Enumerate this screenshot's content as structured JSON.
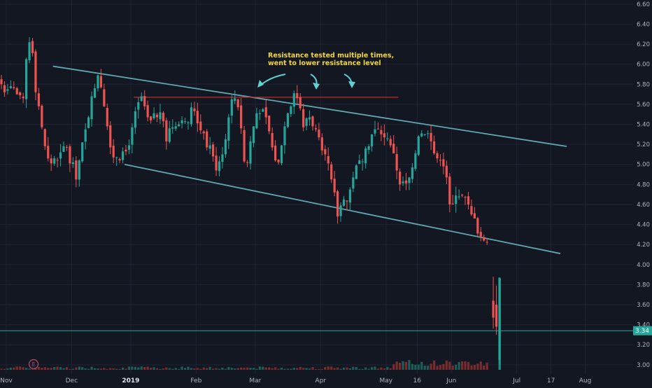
{
  "chart_data": {
    "type": "candlestick",
    "title": "",
    "xlabel": "",
    "ylabel": "",
    "ylim": [
      2.95,
      6.62
    ],
    "grid": true,
    "price_ticks": [
      3.0,
      3.2,
      3.4,
      3.6,
      3.8,
      4.0,
      4.2,
      4.4,
      4.6,
      4.8,
      5.0,
      5.2,
      5.4,
      5.6,
      5.8,
      6.0,
      6.2,
      6.4,
      6.6
    ],
    "x_ticks": [
      {
        "label": "Nov",
        "i": 2,
        "major": false
      },
      {
        "label": "Dec",
        "i": 23,
        "major": false
      },
      {
        "label": "2019",
        "i": 42,
        "major": true
      },
      {
        "label": "Feb",
        "i": 63,
        "major": false
      },
      {
        "label": "Mar",
        "i": 82,
        "major": false
      },
      {
        "label": "Apr",
        "i": 103,
        "major": false
      },
      {
        "label": "May",
        "i": 124,
        "major": false
      },
      {
        "label": "16",
        "i": 134,
        "major": false
      },
      {
        "label": "Jun",
        "i": 145,
        "major": false
      },
      {
        "label": "Jul",
        "i": 166,
        "major": false
      },
      {
        "label": "17",
        "i": 177,
        "major": false
      },
      {
        "label": "Aug",
        "i": 188,
        "major": false
      }
    ],
    "last_price": "3.34",
    "last_price_value": 3.34,
    "earnings_marker": "E",
    "annotation": {
      "text_line1": "Resistance tested multiple times,",
      "text_line2": "went to lower resistance level"
    },
    "trendlines": [
      {
        "name": "upper-channel",
        "color": "#5fa8b0",
        "points": [
          [
            17,
            5.98
          ],
          [
            182,
            5.18
          ]
        ]
      },
      {
        "name": "lower-channel",
        "color": "#5fa8b0",
        "points": [
          [
            40,
            5.0
          ],
          [
            180,
            4.11
          ]
        ]
      },
      {
        "name": "resistance",
        "color": "#c62828",
        "points": [
          [
            43,
            5.67
          ],
          [
            128,
            5.67
          ]
        ]
      }
    ],
    "ohlc_close": [
      5.8,
      5.72,
      5.75,
      5.78,
      5.76,
      5.7,
      5.69,
      5.66,
      6.05,
      6.22,
      6.11,
      5.72,
      5.58,
      5.37,
      5.18,
      5.06,
      5.01,
      5.06,
      5.04,
      5.12,
      5.18,
      5.17,
      5.01,
      5.02,
      4.85,
      5.04,
      5.22,
      5.35,
      5.47,
      5.68,
      5.76,
      5.89,
      5.77,
      5.58,
      5.38,
      5.17,
      5.07,
      5.07,
      5.04,
      5.13,
      5.13,
      5.19,
      5.37,
      5.53,
      5.62,
      5.68,
      5.58,
      5.47,
      5.44,
      5.51,
      5.47,
      5.52,
      5.43,
      5.23,
      5.36,
      5.37,
      5.38,
      5.4,
      5.44,
      5.43,
      5.42,
      5.57,
      5.53,
      5.41,
      5.34,
      5.31,
      5.17,
      5.19,
      5.08,
      4.94,
      5.03,
      5.1,
      5.25,
      5.47,
      5.65,
      5.66,
      5.57,
      5.36,
      5.03,
      5.02,
      5.23,
      5.38,
      5.51,
      5.51,
      5.55,
      5.47,
      5.33,
      5.17,
      5.04,
      5.02,
      5.19,
      5.38,
      5.51,
      5.58,
      5.71,
      5.66,
      5.56,
      5.37,
      5.46,
      5.47,
      5.38,
      5.35,
      5.27,
      5.14,
      5.1,
      5.01,
      4.85,
      4.72,
      4.48,
      4.59,
      4.65,
      4.63,
      4.75,
      4.87,
      4.99,
      5.04,
      5.03,
      5.16,
      5.18,
      5.3,
      5.35,
      5.35,
      5.3,
      5.27,
      5.26,
      5.19,
      5.11,
      4.94,
      4.8,
      4.83,
      4.81,
      4.87,
      4.97,
      5.11,
      5.28,
      5.31,
      5.3,
      5.31,
      5.23,
      5.11,
      5.06,
      5.04,
      4.98,
      4.87,
      4.6,
      4.6,
      4.69,
      4.68,
      4.69,
      4.67,
      4.6,
      4.5,
      4.46,
      4.31,
      4.28,
      4.24,
      4.22
    ],
    "volume_note": "histogram bars along bottom"
  }
}
